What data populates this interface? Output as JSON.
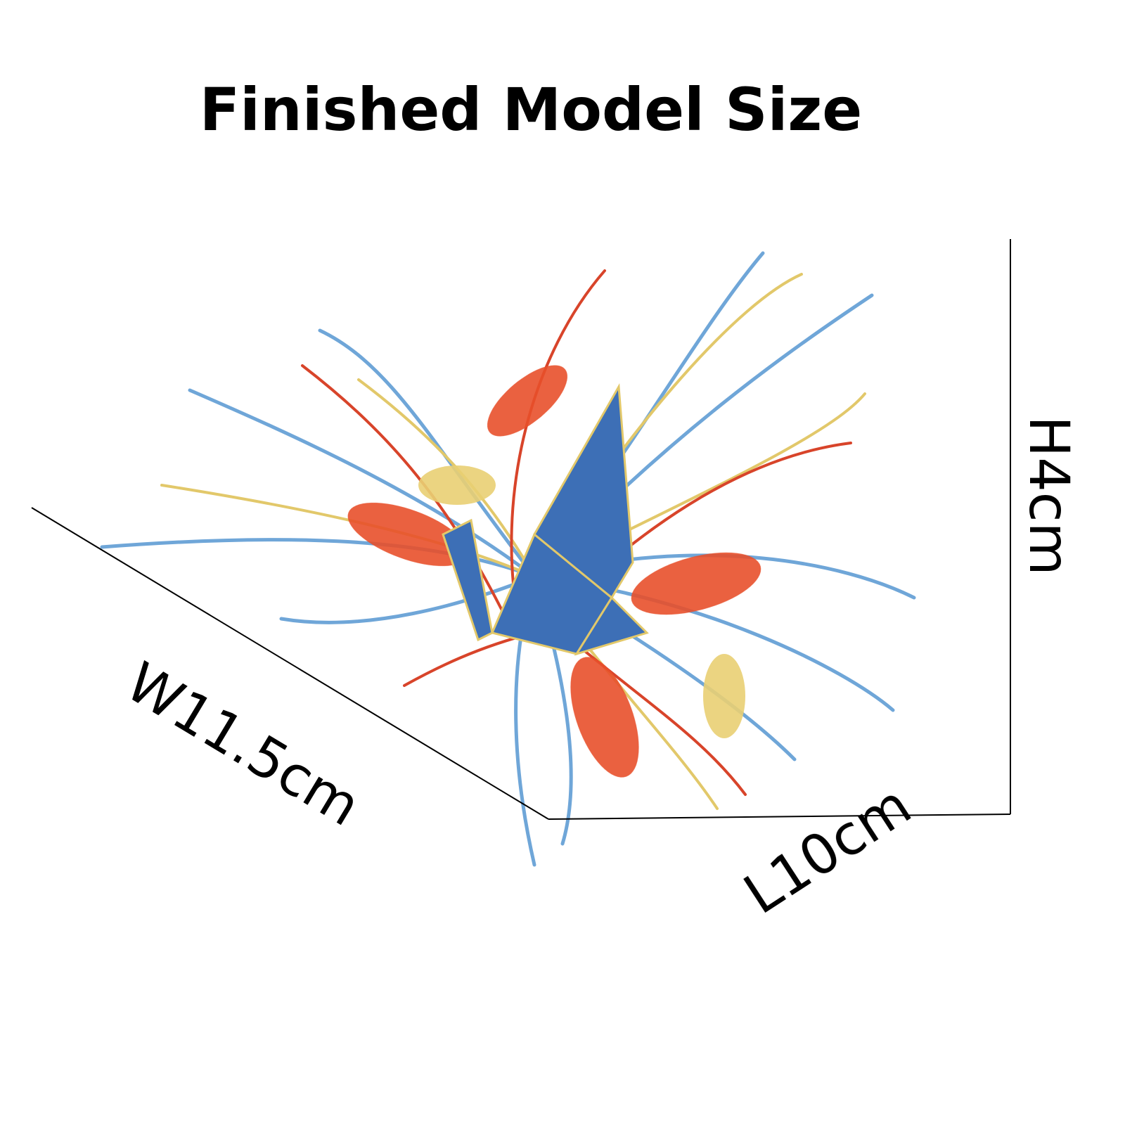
{
  "title": "Finished Model Size",
  "dimensions": {
    "width": "W11.5cm",
    "length": "L10cm",
    "height": "H4cm"
  }
}
